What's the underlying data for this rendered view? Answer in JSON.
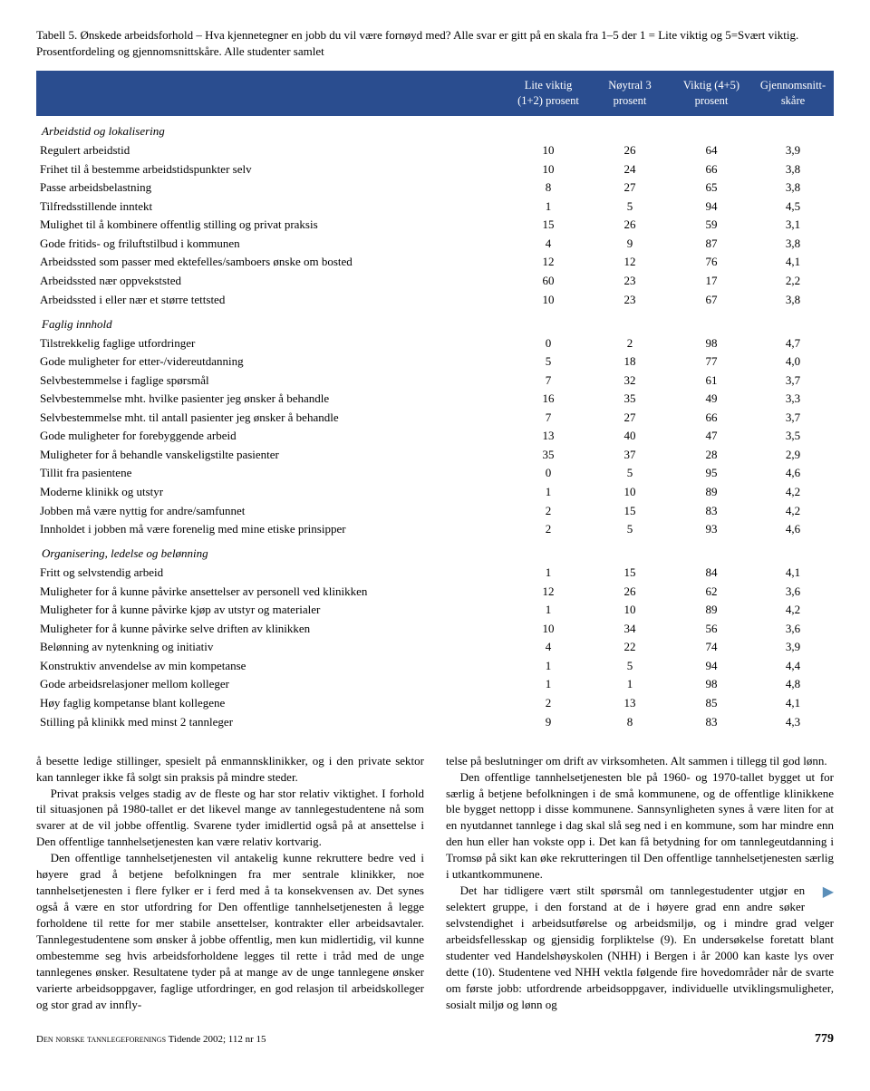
{
  "table": {
    "caption": "Tabell 5. Ønskede arbeidsforhold – Hva kjennetegner en jobb du vil være fornøyd med? Alle svar er gitt på en skala fra 1–5 der 1 = Lite viktig og 5=Svært viktig. Prosentfordeling og gjennomsnittskåre. Alle studenter samlet",
    "header_bg": "#2a4d8f",
    "header_fg": "#ffffff",
    "columns": [
      "Lite viktig (1+2) prosent",
      "Nøytral 3 prosent",
      "Viktig (4+5) prosent",
      "Gjennomsnitt-skåre"
    ],
    "sections": [
      {
        "title": "Arbeidstid og lokalisering",
        "rows": [
          {
            "label": "Regulert arbeidstid",
            "v": [
              10,
              26,
              64,
              "3,9"
            ]
          },
          {
            "label": "Frihet til å bestemme arbeidstidspunkter selv",
            "v": [
              10,
              24,
              66,
              "3,8"
            ]
          },
          {
            "label": "Passe arbeidsbelastning",
            "v": [
              8,
              27,
              65,
              "3,8"
            ]
          },
          {
            "label": "Tilfredsstillende inntekt",
            "v": [
              1,
              5,
              94,
              "4,5"
            ]
          },
          {
            "label": "Mulighet til å kombinere offentlig stilling og privat praksis",
            "v": [
              15,
              26,
              59,
              "3,1"
            ]
          },
          {
            "label": "Gode fritids- og friluftstilbud i kommunen",
            "v": [
              4,
              9,
              87,
              "3,8"
            ]
          },
          {
            "label": "Arbeidssted som passer med ektefelles/samboers ønske om bosted",
            "v": [
              12,
              12,
              76,
              "4,1"
            ]
          },
          {
            "label": "Arbeidssted nær oppvekststed",
            "v": [
              60,
              23,
              17,
              "2,2"
            ]
          },
          {
            "label": "Arbeidssted i eller nær et større tettsted",
            "v": [
              10,
              23,
              67,
              "3,8"
            ]
          }
        ]
      },
      {
        "title": "Faglig innhold",
        "rows": [
          {
            "label": "Tilstrekkelig faglige utfordringer",
            "v": [
              0,
              2,
              98,
              "4,7"
            ]
          },
          {
            "label": "Gode muligheter for etter-/videreutdanning",
            "v": [
              5,
              18,
              77,
              "4,0"
            ]
          },
          {
            "label": "Selvbestemmelse i faglige spørsmål",
            "v": [
              7,
              32,
              61,
              "3,7"
            ]
          },
          {
            "label": "Selvbestemmelse mht. hvilke pasienter jeg ønsker å behandle",
            "v": [
              16,
              35,
              49,
              "3,3"
            ]
          },
          {
            "label": "Selvbestemmelse mht. til antall pasienter jeg ønsker å behandle",
            "v": [
              7,
              27,
              66,
              "3,7"
            ]
          },
          {
            "label": "Gode muligheter for forebyggende arbeid",
            "v": [
              13,
              40,
              47,
              "3,5"
            ]
          },
          {
            "label": "Muligheter for å behandle vanskeligstilte pasienter",
            "v": [
              35,
              37,
              28,
              "2,9"
            ]
          },
          {
            "label": "Tillit fra pasientene",
            "v": [
              0,
              5,
              95,
              "4,6"
            ]
          },
          {
            "label": "Moderne klinikk og utstyr",
            "v": [
              1,
              10,
              89,
              "4,2"
            ]
          },
          {
            "label": "Jobben må være nyttig for andre/samfunnet",
            "v": [
              2,
              15,
              83,
              "4,2"
            ]
          },
          {
            "label": "Innholdet i jobben må være forenelig med mine etiske prinsipper",
            "v": [
              2,
              5,
              93,
              "4,6"
            ]
          }
        ]
      },
      {
        "title": "Organisering, ledelse og belønning",
        "rows": [
          {
            "label": "Fritt og selvstendig arbeid",
            "v": [
              1,
              15,
              84,
              "4,1"
            ]
          },
          {
            "label": "Muligheter for å kunne påvirke ansettelser av personell ved klinikken",
            "v": [
              12,
              26,
              62,
              "3,6"
            ]
          },
          {
            "label": "Muligheter for å kunne påvirke kjøp av utstyr og materialer",
            "v": [
              1,
              10,
              89,
              "4,2"
            ]
          },
          {
            "label": "Muligheter for å kunne påvirke selve driften av klinikken",
            "v": [
              10,
              34,
              56,
              "3,6"
            ]
          },
          {
            "label": "Belønning av nytenkning og initiativ",
            "v": [
              4,
              22,
              74,
              "3,9"
            ]
          },
          {
            "label": "Konstruktiv anvendelse av min kompetanse",
            "v": [
              1,
              5,
              94,
              "4,4"
            ]
          },
          {
            "label": "Gode arbeidsrelasjoner mellom kolleger",
            "v": [
              1,
              1,
              98,
              "4,8"
            ]
          },
          {
            "label": "Høy faglig kompetanse blant kollegene",
            "v": [
              2,
              13,
              85,
              "4,1"
            ]
          },
          {
            "label": "Stilling på klinikk med minst 2 tannleger",
            "v": [
              9,
              8,
              83,
              "4,3"
            ]
          }
        ]
      }
    ]
  },
  "body": {
    "left": [
      "å besette ledige stillinger, spesielt på enmannsklinikker, og i den private sektor kan tannleger ikke få solgt sin praksis på mindre steder.",
      "Privat praksis velges stadig av de fleste og har stor relativ viktighet. I forhold til situasjonen på 1980-tallet er det likevel mange av tannlegestudentene nå som svarer at de vil jobbe offentlig. Svarene tyder imidlertid også på at ansettelse i Den offentlige tannhelsetjenesten kan være relativ kortvarig.",
      "Den offentlige tannhelsetjenesten vil antakelig kunne rekruttere bedre ved i høyere grad å betjene befolkningen fra mer sentrale klinikker, noe tannhelsetjenesten i flere fylker er i ferd med å ta konsekvensen av. Det synes også å være en stor utfordring for Den offentlige tannhelsetjenesten å legge forholdene til rette for mer stabile ansettelser, kontrakter eller arbeidsavtaler. Tannlegestudentene som ønsker å jobbe offentlig, men kun midlertidig, vil kunne ombestemme seg hvis arbeidsforholdene legges til rette i tråd med de unge tannlegenes ønsker. Resultatene tyder på at mange av de unge tannlegene ønsker varierte arbeidsoppgaver, faglige utfordringer, en god relasjon til arbeidskolleger og stor grad av innfly-"
    ],
    "right": [
      "telse på beslutninger om drift av virksomheten. Alt sammen i tillegg til god lønn.",
      "Den offentlige tannhelsetjenesten ble på 1960- og 1970-tallet bygget ut for særlig å betjene befolkningen i de små kommunene, og de offentlige klinikkene ble bygget nettopp i disse kommunene. Sannsynligheten synes å være liten for at en nyutdannet tannlege i dag skal slå seg ned i en kommune, som har mindre enn den hun eller han vokste opp i. Det kan få betydning for om tannlegeutdanning i Tromsø på sikt kan øke rekrutteringen til Den offentlige tannhelsetjenesten særlig i utkantkommunene.",
      "Det har tidligere vært stilt spørsmål om tannlegestudenter utgjør en selektert gruppe, i den forstand at de i høyere grad enn andre søker selvstendighet i arbeidsutførelse og arbeidsmiljø, og i mindre grad velger arbeidsfellesskap og gjensidig forpliktelse (9). En undersøkelse foretatt blant studenter ved Handelshøyskolen (NHH) i Bergen i år 2000 kan kaste lys over dette (10). Studentene ved NHH vektla følgende fire hovedområder når de svarte om første jobb: utfordrende arbeidsoppgaver, individuelle utviklingsmuligheter, sosialt miljø og lønn og"
    ]
  },
  "footer": {
    "left_sc": "Den norske tannlegeforenings",
    "left_rest": " Tidende 2002; 112 nr 15",
    "page": "779"
  }
}
